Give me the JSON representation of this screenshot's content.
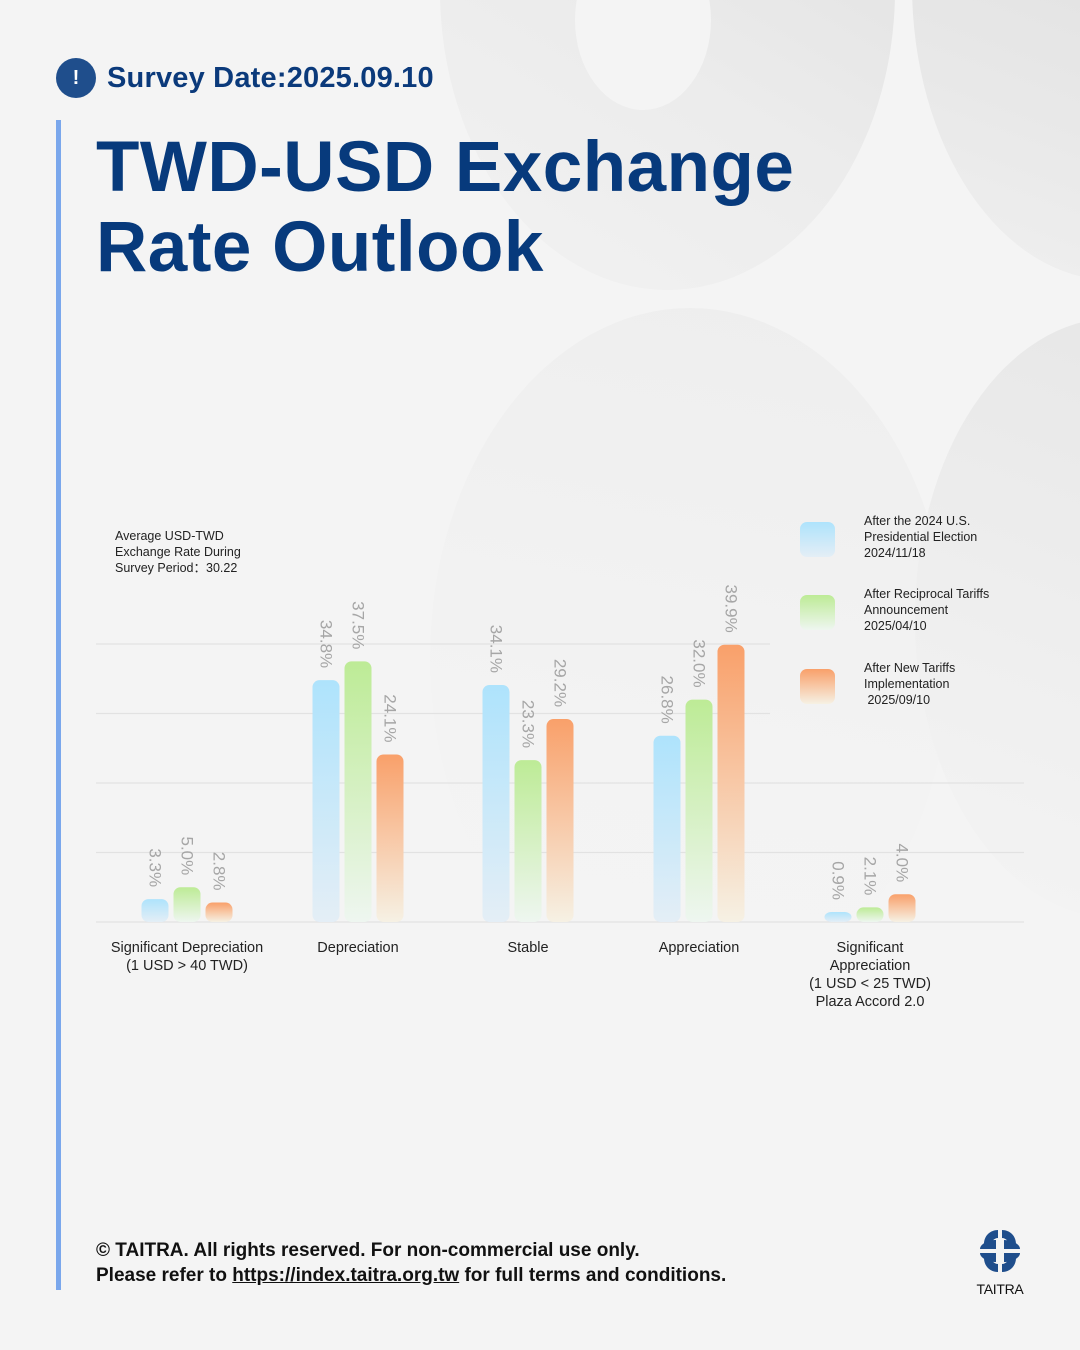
{
  "header": {
    "alert_icon": "!",
    "survey_date": "Survey Date:2025.09.10",
    "title_line1": "TWD-USD Exchange",
    "title_line2": "Rate Outlook"
  },
  "chart_note": {
    "line1": "Average USD-TWD",
    "line2": "Exchange Rate During",
    "line3": "Survey Period：30.22"
  },
  "colors": {
    "blue": "#aee3fc",
    "green": "#bdeb96",
    "orange": "#f9a06a",
    "title": "#073a7c",
    "accent_line": "#7aa7ec"
  },
  "chart_data": {
    "type": "bar",
    "title": "TWD-USD Exchange Rate Outlook",
    "xlabel": "",
    "ylabel": "",
    "ylim": [
      0,
      50
    ],
    "grid": true,
    "legend_position": "top-right",
    "categories": [
      [
        "Significant Depreciation",
        "(1 USD > 40 TWD)"
      ],
      [
        "Depreciation"
      ],
      [
        "Stable"
      ],
      [
        "Appreciation"
      ],
      [
        "Significant",
        "Appreciation",
        "(1 USD < 25 TWD)",
        "Plaza Accord 2.0"
      ]
    ],
    "series": [
      {
        "name": "After the 2024 U.S. Presidential Election 2024/11/18",
        "legend_lines": [
          "After the 2024 U.S.",
          "Presidential Election",
          "2024/11/18"
        ],
        "color": "#aee3fc",
        "values": [
          3.3,
          34.8,
          34.1,
          26.8,
          0.9
        ]
      },
      {
        "name": "After Reciprocal Tariffs Announcement 2025/04/10",
        "legend_lines": [
          "After Reciprocal Tariffs",
          "Announcement",
          "2025/04/10"
        ],
        "color": "#bdeb96",
        "values": [
          5.0,
          37.5,
          23.3,
          32.0,
          2.1
        ]
      },
      {
        "name": "After New Tariffs Implementation 2025/09/10",
        "legend_lines": [
          "After New Tariffs",
          "Implementation",
          " 2025/09/10"
        ],
        "color": "#f9a06a",
        "values": [
          2.8,
          24.1,
          29.2,
          39.9,
          4.0
        ]
      }
    ],
    "value_format": "{v}%"
  },
  "footer": {
    "line1": "© TAITRA. All rights reserved. For non-commercial use only.",
    "line2_prefix": "Please refer to ",
    "link": "https://index.taitra.org.tw",
    "line2_suffix": " for full terms and conditions."
  },
  "logo": {
    "text": "TAITRA"
  }
}
